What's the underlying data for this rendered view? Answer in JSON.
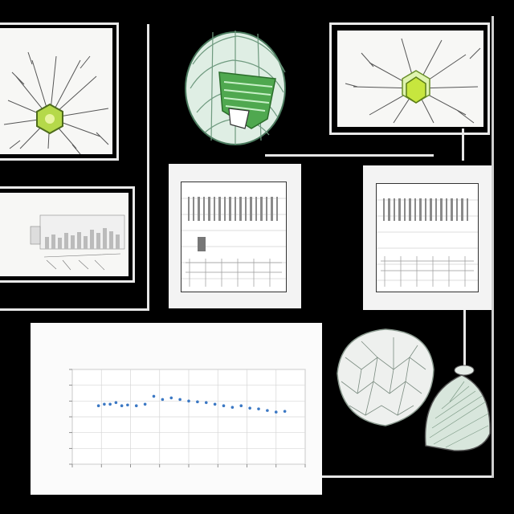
{
  "corner_label": "",
  "footer_caption": "",
  "panel_captions": {
    "middle": "",
    "right": ""
  },
  "chart_data": {
    "type": "scatter",
    "title": "",
    "xlabel": "",
    "ylabel": "",
    "grid": true,
    "ylim": [
      0,
      6
    ],
    "xlim": [
      0,
      8
    ],
    "x_tick_count": 8,
    "y_tick_count": 7,
    "series": [
      {
        "color": "#3b78c4",
        "points": [
          [
            0.9,
            3.7
          ],
          [
            1.1,
            3.8
          ],
          [
            1.3,
            3.8
          ],
          [
            1.5,
            3.9
          ],
          [
            1.7,
            3.7
          ],
          [
            1.9,
            3.75
          ],
          [
            2.2,
            3.7
          ],
          [
            2.5,
            3.8
          ],
          [
            2.8,
            4.3
          ],
          [
            3.1,
            4.1
          ],
          [
            3.4,
            4.2
          ],
          [
            3.7,
            4.1
          ],
          [
            4.0,
            4.0
          ],
          [
            4.3,
            3.95
          ],
          [
            4.6,
            3.9
          ],
          [
            4.9,
            3.8
          ],
          [
            5.2,
            3.7
          ],
          [
            5.5,
            3.6
          ],
          [
            5.8,
            3.7
          ],
          [
            6.1,
            3.55
          ],
          [
            6.4,
            3.5
          ],
          [
            6.7,
            3.4
          ],
          [
            7.0,
            3.3
          ],
          [
            7.3,
            3.35
          ]
        ]
      }
    ]
  },
  "colors": {
    "background": "#000000",
    "panel": "#f7f7f5",
    "frame": "#e9e9e9",
    "neuron_core": "#b5d94a",
    "leaf_green": "#4fa84f",
    "series": "#3b78c4"
  }
}
